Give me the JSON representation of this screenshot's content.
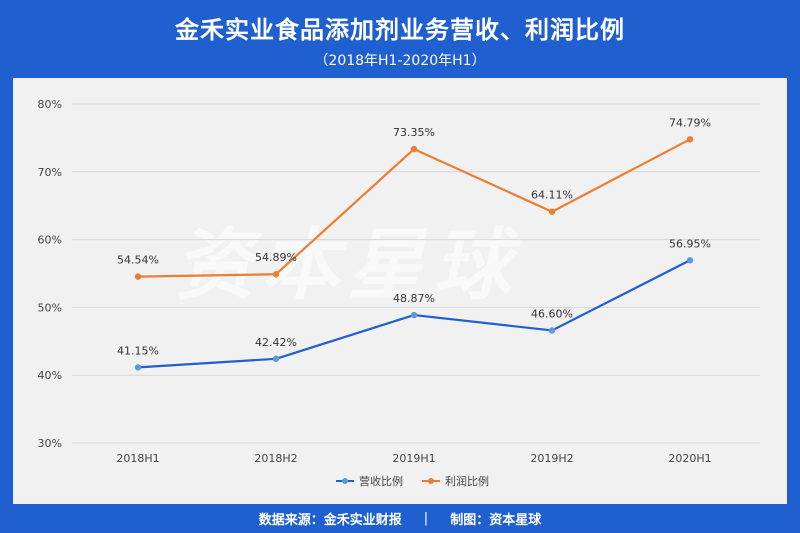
{
  "header": {
    "title": "金禾实业食品添加剂业务营收、利润比例",
    "subtitle": "（2018年H1-2020年H1）"
  },
  "footer": {
    "source": "数据来源：金禾实业财报",
    "separator": "|",
    "maker": "制图：资本星球"
  },
  "watermark": "资本星球",
  "colors": {
    "banner": "#1f5fcf",
    "panel": "#f1f1f1",
    "revenue": "#1f5fcf",
    "profit": "#ed7d31"
  },
  "chart_data": {
    "type": "line",
    "categories": [
      "2018H1",
      "2018H2",
      "2019H1",
      "2019H2",
      "2020H1"
    ],
    "series": [
      {
        "name": "营收比例",
        "values": [
          41.15,
          42.42,
          48.87,
          46.6,
          56.95
        ],
        "labels": [
          "41.15%",
          "42.42%",
          "48.87%",
          "46.60%",
          "56.95%"
        ]
      },
      {
        "name": "利润比例",
        "values": [
          54.54,
          54.89,
          73.35,
          64.11,
          74.79
        ],
        "labels": [
          "54.54%",
          "54.89%",
          "73.35%",
          "64.11%",
          "74.79%"
        ]
      }
    ],
    "ylim": [
      30,
      80
    ],
    "yticks": [
      "30%",
      "40%",
      "50%",
      "60%",
      "70%",
      "80%"
    ],
    "grid": true,
    "legend": "bottom"
  }
}
